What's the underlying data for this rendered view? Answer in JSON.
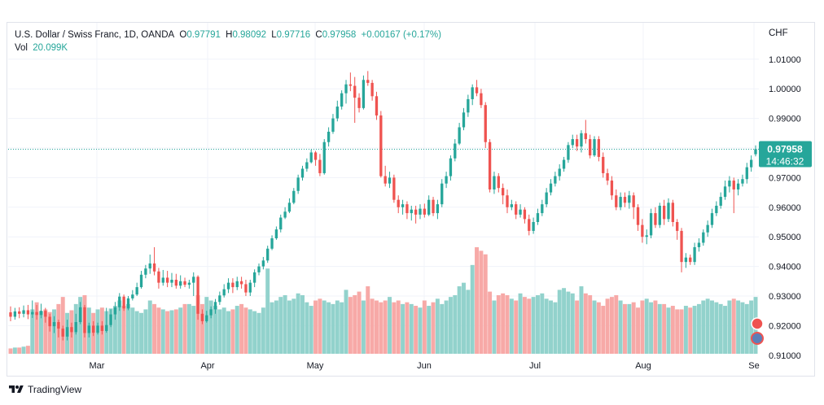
{
  "legend": {
    "symbol": "U.S. Dollar / Swiss Franc, 1D, OANDA",
    "o_label": "O",
    "o_value": "0.97791",
    "h_label": "H",
    "h_value": "0.98092",
    "l_label": "L",
    "l_value": "0.97716",
    "c_label": "C",
    "c_value": "0.97958",
    "change": "+0.00167 (+0.17%)",
    "vol_label": "Vol",
    "vol_value": "20.099K"
  },
  "currency": "CHF",
  "last_price": {
    "price": "0.97958",
    "countdown": "14:46:32"
  },
  "brand": "TradingView",
  "colors": {
    "up": "#26a69a",
    "down": "#ef5350",
    "vol_up": "#92d2cc",
    "vol_down": "#f7a9a7",
    "grid": "#f0f3fa"
  },
  "chart_data": {
    "type": "candlestick",
    "y_ticks": [
      "1.01000",
      "1.00000",
      "0.99000",
      "0.98000",
      "0.97000",
      "0.96000",
      "0.95000",
      "0.94000",
      "0.93000",
      "0.92000",
      "0.91000"
    ],
    "ylim": [
      0.905,
      1.0115
    ],
    "x_labels": [
      "Mar",
      "Apr",
      "May",
      "Jun",
      "Jul",
      "Aug",
      "Se"
    ],
    "candles": [
      [
        0.9245,
        0.923,
        0.9265,
        0.9215
      ],
      [
        0.923,
        0.9248,
        0.926,
        0.922
      ],
      [
        0.9248,
        0.924,
        0.9262,
        0.9225
      ],
      [
        0.924,
        0.9252,
        0.9268,
        0.9228
      ],
      [
        0.9252,
        0.9238,
        0.927,
        0.9222
      ],
      [
        0.9238,
        0.9246,
        0.9285,
        0.9226
      ],
      [
        0.9246,
        0.9236,
        0.927,
        0.922
      ],
      [
        0.9236,
        0.925,
        0.9274,
        0.9225
      ],
      [
        0.925,
        0.923,
        0.926,
        0.921
      ],
      [
        0.923,
        0.9198,
        0.924,
        0.918
      ],
      [
        0.9198,
        0.9212,
        0.9232,
        0.9175
      ],
      [
        0.9212,
        0.919,
        0.922,
        0.916
      ],
      [
        0.919,
        0.9163,
        0.92,
        0.915
      ],
      [
        0.9163,
        0.9195,
        0.922,
        0.915
      ],
      [
        0.9195,
        0.9178,
        0.921,
        0.916
      ],
      [
        0.9178,
        0.9212,
        0.924,
        0.917
      ],
      [
        0.9212,
        0.9262,
        0.928,
        0.9205
      ],
      [
        0.9262,
        0.9175,
        0.927,
        0.916
      ],
      [
        0.9175,
        0.92,
        0.921,
        0.916
      ],
      [
        0.92,
        0.9176,
        0.9215,
        0.9165
      ],
      [
        0.9176,
        0.92,
        0.921,
        0.917
      ],
      [
        0.92,
        0.9182,
        0.9215,
        0.917
      ],
      [
        0.9182,
        0.9202,
        0.926,
        0.9176
      ],
      [
        0.9202,
        0.9238,
        0.9255,
        0.9195
      ],
      [
        0.9238,
        0.9262,
        0.928,
        0.922
      ],
      [
        0.9262,
        0.9298,
        0.931,
        0.925
      ],
      [
        0.9298,
        0.9258,
        0.9305,
        0.925
      ],
      [
        0.9258,
        0.9292,
        0.93,
        0.9252
      ],
      [
        0.9292,
        0.9305,
        0.932,
        0.9285
      ],
      [
        0.9305,
        0.933,
        0.9345,
        0.93
      ],
      [
        0.933,
        0.9372,
        0.9385,
        0.9325
      ],
      [
        0.9372,
        0.9393,
        0.9405,
        0.936
      ],
      [
        0.9393,
        0.941,
        0.944,
        0.9375
      ],
      [
        0.941,
        0.9383,
        0.9465,
        0.937
      ],
      [
        0.9383,
        0.9345,
        0.9395,
        0.9325
      ],
      [
        0.9345,
        0.9362,
        0.9388,
        0.9335
      ],
      [
        0.9362,
        0.9345,
        0.9385,
        0.933
      ],
      [
        0.9345,
        0.9355,
        0.9378,
        0.933
      ],
      [
        0.9355,
        0.9335,
        0.9375,
        0.9325
      ],
      [
        0.9335,
        0.935,
        0.937,
        0.9325
      ],
      [
        0.935,
        0.9338,
        0.9362,
        0.933
      ],
      [
        0.9338,
        0.9345,
        0.9355,
        0.9325
      ],
      [
        0.9345,
        0.9365,
        0.938,
        0.93
      ],
      [
        0.9365,
        0.924,
        0.937,
        0.922
      ],
      [
        0.924,
        0.9215,
        0.9255,
        0.9205
      ],
      [
        0.9215,
        0.9235,
        0.925,
        0.921
      ],
      [
        0.9235,
        0.9255,
        0.9265,
        0.9225
      ],
      [
        0.9255,
        0.928,
        0.929,
        0.924
      ],
      [
        0.928,
        0.9302,
        0.9315,
        0.927
      ],
      [
        0.9302,
        0.9323,
        0.934,
        0.9295
      ],
      [
        0.9323,
        0.9345,
        0.936,
        0.931
      ],
      [
        0.9345,
        0.933,
        0.936,
        0.931
      ],
      [
        0.933,
        0.935,
        0.9365,
        0.932
      ],
      [
        0.935,
        0.934,
        0.9365,
        0.9325
      ],
      [
        0.934,
        0.9312,
        0.9355,
        0.93
      ],
      [
        0.9312,
        0.9345,
        0.9355,
        0.93
      ],
      [
        0.9345,
        0.938,
        0.939,
        0.933
      ],
      [
        0.938,
        0.94,
        0.941,
        0.937
      ],
      [
        0.94,
        0.942,
        0.9432,
        0.939
      ],
      [
        0.942,
        0.946,
        0.947,
        0.9412
      ],
      [
        0.946,
        0.9495,
        0.9505,
        0.9455
      ],
      [
        0.9495,
        0.9525,
        0.9535,
        0.949
      ],
      [
        0.9525,
        0.9565,
        0.9575,
        0.9515
      ],
      [
        0.9565,
        0.9585,
        0.96,
        0.956
      ],
      [
        0.9585,
        0.9615,
        0.963,
        0.958
      ],
      [
        0.9615,
        0.9655,
        0.9665,
        0.961
      ],
      [
        0.9655,
        0.97,
        0.971,
        0.9645
      ],
      [
        0.97,
        0.973,
        0.974,
        0.969
      ],
      [
        0.973,
        0.9752,
        0.9765,
        0.972
      ],
      [
        0.9752,
        0.9785,
        0.9795,
        0.9748
      ],
      [
        0.9785,
        0.976,
        0.979,
        0.974
      ],
      [
        0.976,
        0.9715,
        0.978,
        0.9705
      ],
      [
        0.9715,
        0.982,
        0.983,
        0.971
      ],
      [
        0.982,
        0.9855,
        0.987,
        0.9805
      ],
      [
        0.9855,
        0.99,
        0.9915,
        0.9848
      ],
      [
        0.99,
        0.994,
        0.996,
        0.989
      ],
      [
        0.994,
        0.9985,
        0.9995,
        0.993
      ],
      [
        0.9985,
        1.0015,
        1.003,
        0.995
      ],
      [
        1.0015,
        1.001,
        1.0055,
        0.9992
      ],
      [
        1.001,
        0.997,
        1.004,
        0.9885
      ],
      [
        0.997,
        0.9935,
        0.9985,
        0.992
      ],
      [
        0.9935,
        1.003,
        1.0045,
        0.993
      ],
      [
        1.003,
        1.002,
        1.006,
        1.001
      ],
      [
        1.002,
        0.9975,
        1.003,
        0.996
      ],
      [
        0.9975,
        0.991,
        0.999,
        0.9895
      ],
      [
        0.991,
        0.9705,
        0.9925,
        0.97
      ],
      [
        0.9705,
        0.968,
        0.974,
        0.967
      ],
      [
        0.968,
        0.97,
        0.972,
        0.9665
      ],
      [
        0.97,
        0.9625,
        0.971,
        0.9615
      ],
      [
        0.9625,
        0.96,
        0.964,
        0.958
      ],
      [
        0.96,
        0.961,
        0.9625,
        0.9575
      ],
      [
        0.961,
        0.958,
        0.962,
        0.956
      ],
      [
        0.958,
        0.9592,
        0.9605,
        0.9555
      ],
      [
        0.9592,
        0.9575,
        0.9605,
        0.9545
      ],
      [
        0.9575,
        0.9595,
        0.961,
        0.956
      ],
      [
        0.9595,
        0.9575,
        0.9612,
        0.9565
      ],
      [
        0.9575,
        0.9625,
        0.964,
        0.957
      ],
      [
        0.9625,
        0.958,
        0.9635,
        0.957
      ],
      [
        0.958,
        0.961,
        0.9625,
        0.956
      ],
      [
        0.961,
        0.968,
        0.9695,
        0.96
      ],
      [
        0.968,
        0.9705,
        0.972,
        0.9665
      ],
      [
        0.9705,
        0.9765,
        0.9775,
        0.969
      ],
      [
        0.9765,
        0.9815,
        0.983,
        0.9755
      ],
      [
        0.9815,
        0.987,
        0.9885,
        0.981
      ],
      [
        0.987,
        0.992,
        0.9935,
        0.986
      ],
      [
        0.992,
        0.9965,
        0.998,
        0.9905
      ],
      [
        0.9965,
        1.0005,
        1.0015,
        0.9945
      ],
      [
        1.0005,
        0.9985,
        1.003,
        0.9975
      ],
      [
        0.9985,
        0.9945,
        1.0,
        0.9935
      ],
      [
        0.9945,
        0.982,
        0.9955,
        0.98
      ],
      [
        0.982,
        0.966,
        0.983,
        0.965
      ],
      [
        0.966,
        0.9705,
        0.972,
        0.9645
      ],
      [
        0.9705,
        0.9665,
        0.9715,
        0.965
      ],
      [
        0.9665,
        0.964,
        0.968,
        0.961
      ],
      [
        0.964,
        0.96,
        0.966,
        0.958
      ],
      [
        0.96,
        0.961,
        0.9625,
        0.959
      ],
      [
        0.961,
        0.9575,
        0.962,
        0.956
      ],
      [
        0.9575,
        0.9592,
        0.961,
        0.9565
      ],
      [
        0.9592,
        0.956,
        0.96,
        0.9545
      ],
      [
        0.956,
        0.952,
        0.9575,
        0.9505
      ],
      [
        0.952,
        0.955,
        0.9565,
        0.951
      ],
      [
        0.955,
        0.958,
        0.9595,
        0.954
      ],
      [
        0.958,
        0.961,
        0.9625,
        0.957
      ],
      [
        0.961,
        0.965,
        0.9665,
        0.96
      ],
      [
        0.965,
        0.968,
        0.9695,
        0.964
      ],
      [
        0.968,
        0.9705,
        0.972,
        0.967
      ],
      [
        0.9705,
        0.973,
        0.9745,
        0.969
      ],
      [
        0.973,
        0.976,
        0.977,
        0.972
      ],
      [
        0.976,
        0.981,
        0.982,
        0.975
      ],
      [
        0.981,
        0.983,
        0.9845,
        0.98
      ],
      [
        0.983,
        0.9805,
        0.9845,
        0.979
      ],
      [
        0.9805,
        0.985,
        0.986,
        0.9785
      ],
      [
        0.985,
        0.983,
        0.9895,
        0.9815
      ],
      [
        0.983,
        0.9775,
        0.9845,
        0.9765
      ],
      [
        0.9775,
        0.983,
        0.984,
        0.977
      ],
      [
        0.983,
        0.977,
        0.984,
        0.9755
      ],
      [
        0.977,
        0.9715,
        0.9785,
        0.97
      ],
      [
        0.9715,
        0.969,
        0.973,
        0.9675
      ],
      [
        0.969,
        0.964,
        0.9705,
        0.9625
      ],
      [
        0.964,
        0.96,
        0.966,
        0.959
      ],
      [
        0.96,
        0.9635,
        0.965,
        0.959
      ],
      [
        0.9635,
        0.9615,
        0.965,
        0.96
      ],
      [
        0.9615,
        0.964,
        0.9655,
        0.9595
      ],
      [
        0.964,
        0.96,
        0.965,
        0.956
      ],
      [
        0.96,
        0.954,
        0.961,
        0.952
      ],
      [
        0.954,
        0.95,
        0.956,
        0.948
      ],
      [
        0.95,
        0.9505,
        0.9525,
        0.9475
      ],
      [
        0.9505,
        0.958,
        0.9595,
        0.9495
      ],
      [
        0.958,
        0.954,
        0.96,
        0.953
      ],
      [
        0.954,
        0.9605,
        0.9615,
        0.953
      ],
      [
        0.9605,
        0.956,
        0.9625,
        0.954
      ],
      [
        0.956,
        0.9615,
        0.963,
        0.955
      ],
      [
        0.9615,
        0.955,
        0.9625,
        0.9535
      ],
      [
        0.955,
        0.952,
        0.956,
        0.949
      ],
      [
        0.952,
        0.9415,
        0.953,
        0.938
      ],
      [
        0.9415,
        0.943,
        0.9445,
        0.9395
      ],
      [
        0.943,
        0.9415,
        0.944,
        0.9405
      ],
      [
        0.9415,
        0.9465,
        0.948,
        0.9405
      ],
      [
        0.9465,
        0.948,
        0.9495,
        0.945
      ],
      [
        0.948,
        0.9515,
        0.9525,
        0.947
      ],
      [
        0.9515,
        0.954,
        0.9555,
        0.95
      ],
      [
        0.954,
        0.958,
        0.9595,
        0.953
      ],
      [
        0.958,
        0.9605,
        0.962,
        0.957
      ],
      [
        0.9605,
        0.9635,
        0.965,
        0.9595
      ],
      [
        0.9635,
        0.967,
        0.969,
        0.9625
      ],
      [
        0.967,
        0.969,
        0.9705,
        0.965
      ],
      [
        0.969,
        0.966,
        0.97,
        0.958
      ],
      [
        0.966,
        0.968,
        0.9695,
        0.964
      ],
      [
        0.968,
        0.9695,
        0.971,
        0.967
      ],
      [
        0.9695,
        0.9735,
        0.975,
        0.968
      ],
      [
        0.9735,
        0.976,
        0.9775,
        0.972
      ],
      [
        0.9779,
        0.9796,
        0.9809,
        0.9772
      ]
    ],
    "volume": [
      30,
      35,
      35,
      40,
      45,
      250,
      290,
      240,
      250,
      235,
      250,
      280,
      320,
      230,
      245,
      280,
      320,
      330,
      260,
      230,
      250,
      260,
      240,
      255,
      270,
      300,
      270,
      280,
      260,
      240,
      230,
      250,
      300,
      280,
      260,
      250,
      240,
      245,
      250,
      260,
      280,
      280,
      270,
      330,
      280,
      320,
      300,
      270,
      250,
      260,
      240,
      250,
      270,
      280,
      260,
      250,
      240,
      230,
      260,
      480,
      290,
      300,
      320,
      330,
      300,
      310,
      340,
      330,
      290,
      270,
      300,
      310,
      300,
      290,
      280,
      300,
      290,
      360,
      320,
      330,
      350,
      300,
      380,
      310,
      300,
      290,
      300,
      320,
      290,
      300,
      280,
      290,
      280,
      270,
      260,
      300,
      270,
      290,
      310,
      280,
      300,
      320,
      330,
      380,
      400,
      360,
      500,
      600,
      580,
      560,
      350,
      300,
      330,
      340,
      330,
      310,
      300,
      340,
      320,
      310,
      320,
      330,
      340,
      310,
      300,
      290,
      360,
      370,
      350,
      340,
      300,
      380,
      340,
      330,
      300,
      290,
      270,
      310,
      320,
      330,
      300,
      280,
      280,
      290,
      260,
      300,
      310,
      290,
      300,
      280,
      280,
      260,
      270,
      250,
      250,
      270,
      260,
      270,
      280,
      300,
      310,
      300,
      290,
      280,
      270,
      300,
      310,
      300,
      290,
      280,
      300,
      320,
      250
    ]
  }
}
